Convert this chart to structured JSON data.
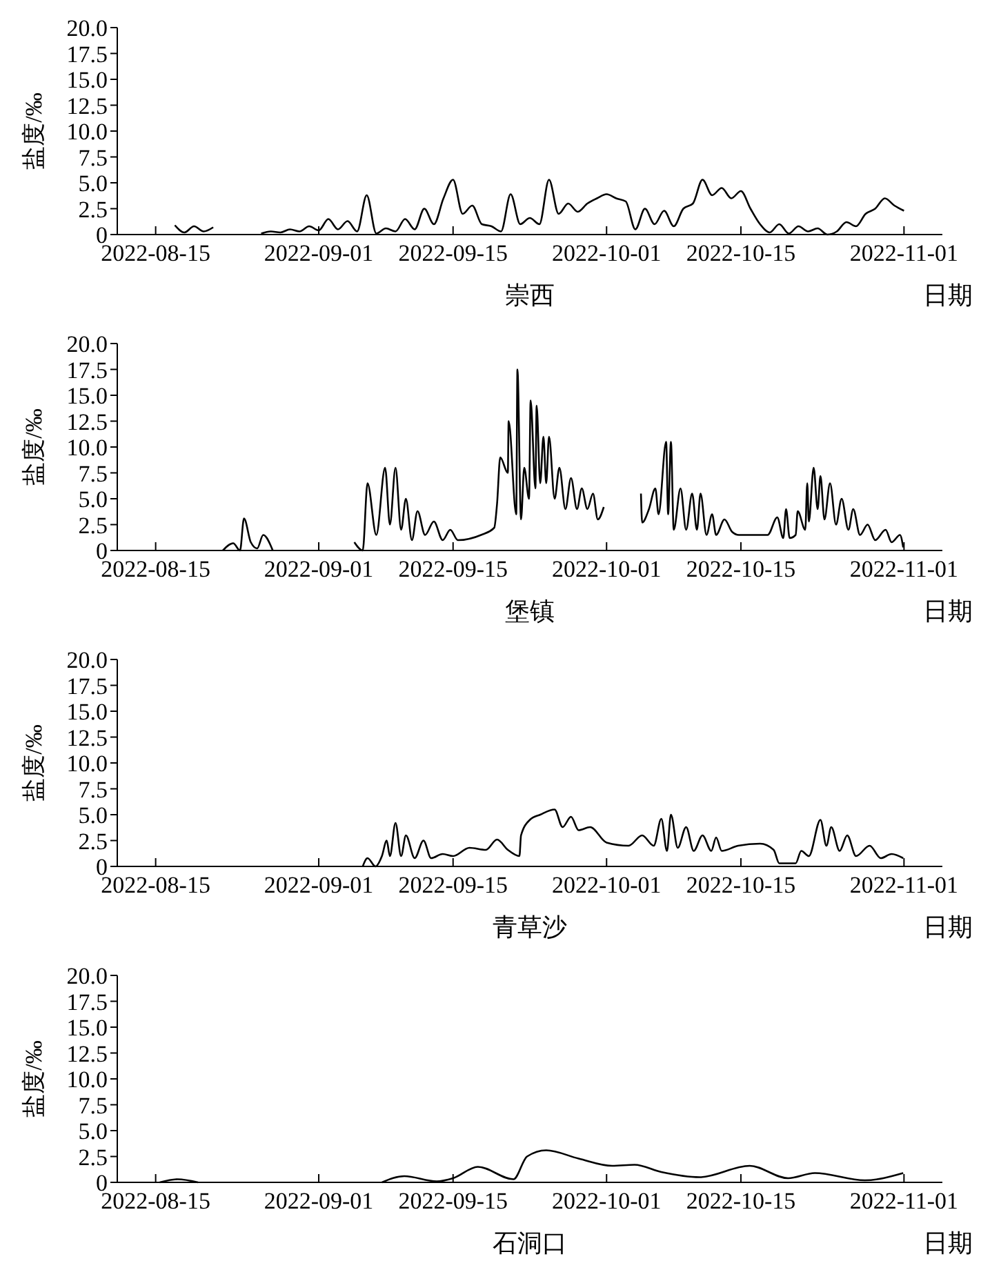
{
  "chart_data": [
    {
      "type": "line",
      "title": "崇西",
      "xlabel": "日期",
      "ylabel": "盐度/‰",
      "xlim": [
        "2022-08-11",
        "2022-11-05"
      ],
      "xticks": [
        "2022-08-15",
        "2022-09-01",
        "2022-09-15",
        "2022-10-01",
        "2022-10-15",
        "2022-11-01"
      ],
      "ylim": [
        0,
        20
      ],
      "yticks": [
        {
          "value": 0,
          "label": "0"
        },
        {
          "value": 2.5,
          "label": "2.5"
        },
        {
          "value": 5,
          "label": "5.0"
        },
        {
          "value": 7.5,
          "label": "7.5"
        },
        {
          "value": 10,
          "label": "10.0"
        },
        {
          "value": 12.5,
          "label": "12.5"
        },
        {
          "value": 15,
          "label": "15.0"
        },
        {
          "value": 17.5,
          "label": "17.5"
        },
        {
          "value": 20,
          "label": "20.0"
        }
      ],
      "x": [
        "2022-08-17",
        "2022-08-18",
        "2022-08-19",
        "2022-08-20",
        "2022-08-21",
        "2022-08-22",
        "2022-08-26",
        "2022-08-27",
        "2022-08-28",
        "2022-08-29",
        "2022-08-30",
        "2022-08-31",
        "2022-09-01",
        "2022-09-02",
        "2022-09-03",
        "2022-09-04",
        "2022-09-05",
        "2022-09-06",
        "2022-09-07",
        "2022-09-08",
        "2022-09-09",
        "2022-09-10",
        "2022-09-11",
        "2022-09-12",
        "2022-09-13",
        "2022-09-14",
        "2022-09-15",
        "2022-09-16",
        "2022-09-17",
        "2022-09-18",
        "2022-09-19",
        "2022-09-20",
        "2022-09-21",
        "2022-09-22",
        "2022-09-23",
        "2022-09-24",
        "2022-09-25",
        "2022-09-26",
        "2022-09-27",
        "2022-09-28",
        "2022-09-29",
        "2022-09-30",
        "2022-10-01",
        "2022-10-02",
        "2022-10-03",
        "2022-10-04",
        "2022-10-05",
        "2022-10-06",
        "2022-10-07",
        "2022-10-08",
        "2022-10-09",
        "2022-10-10",
        "2022-10-11",
        "2022-10-12",
        "2022-10-13",
        "2022-10-14",
        "2022-10-15",
        "2022-10-16",
        "2022-10-17",
        "2022-10-18",
        "2022-10-19",
        "2022-10-20",
        "2022-10-21",
        "2022-10-22",
        "2022-10-23",
        "2022-10-24",
        "2022-10-25",
        "2022-10-26",
        "2022-10-27",
        "2022-10-28",
        "2022-10-29",
        "2022-10-30",
        "2022-10-31",
        "2022-11-01"
      ],
      "series": [
        {
          "color": "#000000",
          "values": [
            0.9,
            0.2,
            0.8,
            0.3,
            0.7,
            null,
            0.1,
            0.3,
            0.2,
            0.5,
            0.3,
            0.8,
            0.4,
            1.5,
            0.5,
            1.3,
            0.3,
            3.8,
            0.1,
            0.6,
            0.3,
            1.5,
            0.5,
            2.5,
            1.0,
            3.5,
            5.3,
            2.0,
            2.8,
            1.0,
            0.8,
            0.3,
            3.9,
            1.0,
            1.6,
            1.0,
            5.3,
            2.0,
            3.0,
            2.2,
            3.0,
            3.5,
            3.9,
            3.5,
            3.2,
            0.5,
            2.5,
            1.0,
            2.3,
            0.8,
            2.5,
            3.0,
            5.3,
            3.8,
            4.5,
            3.5,
            4.2,
            2.5,
            1.0,
            0.2,
            1.0,
            0.1,
            0.8,
            0.3,
            0.6,
            0.0,
            0.3,
            1.2,
            0.8,
            2.0,
            2.5,
            3.5,
            2.8,
            2.3
          ]
        }
      ]
    },
    {
      "type": "line",
      "title": "堡镇",
      "xlabel": "日期",
      "ylabel": "盐度/‰",
      "xlim": [
        "2022-08-11",
        "2022-11-05"
      ],
      "xticks": [
        "2022-08-15",
        "2022-09-01",
        "2022-09-15",
        "2022-10-01",
        "2022-10-15",
        "2022-11-01"
      ],
      "ylim": [
        0,
        20
      ],
      "yticks": [
        {
          "value": 0,
          "label": "0"
        },
        {
          "value": 2.5,
          "label": "2.5"
        },
        {
          "value": 5,
          "label": "5.0"
        },
        {
          "value": 7.5,
          "label": "7.5"
        },
        {
          "value": 10,
          "label": "10.0"
        },
        {
          "value": 12.5,
          "label": "12.5"
        },
        {
          "value": 15,
          "label": "15.0"
        },
        {
          "value": 17.5,
          "label": "17.5"
        },
        {
          "value": 20,
          "label": "20.0"
        }
      ],
      "x": [
        "2022-08-22",
        "2022-08-23T02:00",
        "2022-08-23T19:00",
        "2022-08-24T05:00",
        "2022-08-24T22:00",
        "2022-08-25T14:00",
        "2022-08-26T05:00",
        "2022-08-27T05:00",
        "2022-08-30",
        "2022-09-04T17:00",
        "2022-09-05T14:00",
        "2022-09-06T02:00",
        "2022-09-07",
        "2022-09-07T22:00",
        "2022-09-08T10:00",
        "2022-09-09",
        "2022-09-09T14:00",
        "2022-09-10T02:00",
        "2022-09-10T17:00",
        "2022-09-11T07:00",
        "2022-09-12T02:00",
        "2022-09-13",
        "2022-09-13T22:00",
        "2022-09-14T17:00",
        "2022-09-15T12:00",
        "2022-09-17T22:00",
        "2022-09-19T07:00",
        "2022-09-19T14:00",
        "2022-09-19T22:00",
        "2022-09-20T17:00",
        "2022-09-20T19:00",
        "2022-09-21T14:00",
        "2022-09-21T17:00",
        "2022-09-22T02:00",
        "2022-09-22T10:00",
        "2022-09-22T22:00",
        "2022-09-23T02:00",
        "2022-09-23T14:00",
        "2022-09-23T17:00",
        "2022-09-24T02:00",
        "2022-09-24T10:00",
        "2022-09-24T17:00",
        "2022-09-25",
        "2022-09-25T14:00",
        "2022-09-26T02:00",
        "2022-09-26T17:00",
        "2022-09-27T07:00",
        "2022-09-27T22:00",
        "2022-09-28T10:00",
        "2022-09-29",
        "2022-09-29T14:00",
        "2022-09-30T02:00",
        "2022-09-30T17:00",
        "2022-10-02T12:00",
        "2022-10-04T14:00",
        "2022-10-04T17:00",
        "2022-10-05T10:00",
        "2022-10-06T02:00",
        "2022-10-06T10:00",
        "2022-10-07T05:00",
        "2022-10-07T10:00",
        "2022-10-07T17:00",
        "2022-10-08",
        "2022-10-08T17:00",
        "2022-10-09T07:00",
        "2022-10-09T22:00",
        "2022-10-10T10:00",
        "2022-10-10T19:00",
        "2022-10-11T10:00",
        "2022-10-12",
        "2022-10-12T10:00",
        "2022-10-13T07:00",
        "2022-10-14T02:00",
        "2022-10-14T19:00",
        "2022-10-17T19:00",
        "2022-10-18T19:00",
        "2022-10-19T10:00",
        "2022-10-19T17:00",
        "2022-10-20T02:00",
        "2022-10-20T17:00",
        "2022-10-20T22:00",
        "2022-10-21T17:00",
        "2022-10-21T22:00",
        "2022-10-22T02:00",
        "2022-10-22T14:00",
        "2022-10-23",
        "2022-10-23T07:00",
        "2022-10-23T17:00",
        "2022-10-24T07:00",
        "2022-10-24T22:00",
        "2022-10-25T12:00",
        "2022-10-26T05:00",
        "2022-10-26T17:00",
        "2022-10-27T10:00",
        "2022-10-28T05:00",
        "2022-10-29",
        "2022-10-30T02:00",
        "2022-10-30T17:00",
        "2022-10-31T14:00",
        "2022-10-31T22:00"
      ],
      "series": [
        {
          "color": "#000000",
          "values": [
            0,
            0.7,
            0,
            3.1,
            0.8,
            0.2,
            1.5,
            0,
            null,
            0.8,
            0,
            6.5,
            1.5,
            8.0,
            2.5,
            8.0,
            2.0,
            5.0,
            1.0,
            3.8,
            1.5,
            2.8,
            1.0,
            2.0,
            1.0,
            1.5,
            2.2,
            4.5,
            9.0,
            7.5,
            12.5,
            3.5,
            17.5,
            3.0,
            8.0,
            5.0,
            14.5,
            6.0,
            14.0,
            6.5,
            11.0,
            6.5,
            11.0,
            5.0,
            8.0,
            4.0,
            7.0,
            4.0,
            6.0,
            4.0,
            5.5,
            3.0,
            4.2,
            null,
            5.5,
            2.7,
            4.0,
            6.0,
            3.5,
            10.5,
            3.5,
            10.5,
            2.0,
            6.0,
            2.0,
            5.5,
            2.0,
            5.5,
            1.5,
            3.5,
            1.5,
            3.0,
            1.8,
            1.5,
            1.5,
            3.2,
            1.2,
            4.0,
            1.2,
            1.5,
            3.8,
            2.0,
            6.5,
            2.8,
            8.0,
            4.0,
            7.2,
            3.0,
            6.5,
            2.5,
            5.0,
            2.0,
            4.0,
            1.5,
            2.5,
            1.0,
            2.0,
            0.8,
            1.5,
            0.3
          ]
        }
      ]
    },
    {
      "type": "line",
      "title": "青草沙",
      "xlabel": "日期",
      "ylabel": "盐度/‰",
      "xlim": [
        "2022-08-11",
        "2022-11-05"
      ],
      "xticks": [
        "2022-08-15",
        "2022-09-01",
        "2022-09-15",
        "2022-10-01",
        "2022-10-15",
        "2022-11-01"
      ],
      "ylim": [
        0,
        20
      ],
      "yticks": [
        {
          "value": 0,
          "label": "0"
        },
        {
          "value": 2.5,
          "label": "2.5"
        },
        {
          "value": 5,
          "label": "5.0"
        },
        {
          "value": 7.5,
          "label": "7.5"
        },
        {
          "value": 10,
          "label": "10.0"
        },
        {
          "value": 12.5,
          "label": "12.5"
        },
        {
          "value": 15,
          "label": "15.0"
        },
        {
          "value": 17.5,
          "label": "17.5"
        },
        {
          "value": 20,
          "label": "20.0"
        }
      ],
      "x": [
        "2022-09-05T14:00",
        "2022-09-06T02:00",
        "2022-09-06T22:00",
        "2022-09-07T14:00",
        "2022-09-08T02:00",
        "2022-09-08T10:00",
        "2022-09-09",
        "2022-09-09T14:00",
        "2022-09-10T02:00",
        "2022-09-11",
        "2022-09-11T22:00",
        "2022-09-12T17:00",
        "2022-09-13T22:00",
        "2022-09-15",
        "2022-09-16T17:00",
        "2022-09-18T10:00",
        "2022-09-19T14:00",
        "2022-09-20T17:00",
        "2022-09-21T22:00",
        "2022-09-22T02:00",
        "2022-09-23",
        "2022-09-24T02:00",
        "2022-09-25T14:00",
        "2022-09-26T10:00",
        "2022-09-27T07:00",
        "2022-09-28T02:00",
        "2022-09-29T07:00",
        "2022-10-01",
        "2022-10-03T07:00",
        "2022-10-04T17:00",
        "2022-10-05T22:00",
        "2022-10-06T17:00",
        "2022-10-07T07:00",
        "2022-10-07T17:00",
        "2022-10-08T10:00",
        "2022-10-09T07:00",
        "2022-10-10T02:00",
        "2022-10-11",
        "2022-10-11T22:00",
        "2022-10-12T10:00",
        "2022-10-13",
        "2022-10-14T17:00",
        "2022-10-17",
        "2022-10-18T10:00",
        "2022-10-19",
        "2022-10-20T17:00",
        "2022-10-21T07:00",
        "2022-10-22T02:00",
        "2022-10-23T07:00",
        "2022-10-23T22:00",
        "2022-10-24T10:00",
        "2022-10-25T07:00",
        "2022-10-26T02:00",
        "2022-10-27",
        "2022-10-28T10:00",
        "2022-10-29T14:00",
        "2022-10-30T17:00",
        "2022-10-31T22:00"
      ],
      "series": [
        {
          "color": "#000000",
          "values": [
            0,
            0.8,
            0,
            1.0,
            2.5,
            1.0,
            4.2,
            1.0,
            3.0,
            0.8,
            2.5,
            0.8,
            1.2,
            1.0,
            1.8,
            1.6,
            2.6,
            1.6,
            1.0,
            3.0,
            4.5,
            5.0,
            5.5,
            3.8,
            4.8,
            3.5,
            3.8,
            2.3,
            2.0,
            3.0,
            2.0,
            4.6,
            1.5,
            5.0,
            1.8,
            3.8,
            1.5,
            3.0,
            1.5,
            2.8,
            1.5,
            2.0,
            2.2,
            1.6,
            0.3,
            0.3,
            1.5,
            1.0,
            4.5,
            2.0,
            3.8,
            1.5,
            3.0,
            1.0,
            2.0,
            0.8,
            1.2,
            0.8
          ]
        }
      ]
    },
    {
      "type": "line",
      "title": "石洞口",
      "xlabel": "日期",
      "ylabel": "盐度/‰",
      "xlim": [
        "2022-08-11",
        "2022-11-05"
      ],
      "xticks": [
        "2022-08-15",
        "2022-09-01",
        "2022-09-15",
        "2022-10-01",
        "2022-10-15",
        "2022-11-01"
      ],
      "ylim": [
        0,
        20
      ],
      "yticks": [
        {
          "value": 0,
          "label": "0"
        },
        {
          "value": 2.5,
          "label": "2.5"
        },
        {
          "value": 5,
          "label": "5.0"
        },
        {
          "value": 7.5,
          "label": "7.5"
        },
        {
          "value": 10,
          "label": "10.0"
        },
        {
          "value": 12.5,
          "label": "12.5"
        },
        {
          "value": 15,
          "label": "15.0"
        },
        {
          "value": 17.5,
          "label": "17.5"
        },
        {
          "value": 20,
          "label": "20.0"
        }
      ],
      "x": [
        "2022-08-15T10:00",
        "2022-08-17T07:00",
        "2022-08-19T10:00",
        "2022-08-25",
        "2022-09-07T14:00",
        "2022-09-09T22:00",
        "2022-09-13T07:00",
        "2022-09-15",
        "2022-09-17T14:00",
        "2022-09-21T07:00",
        "2022-09-22T17:00",
        "2022-09-24T17:00",
        "2022-09-28T02:00",
        "2022-10-01T14:00",
        "2022-10-03T22:00",
        "2022-10-06T17:00",
        "2022-10-10T17:00",
        "2022-10-15T22:00",
        "2022-10-19T22:00",
        "2022-10-22T17:00",
        "2022-10-27T22:00",
        "2022-10-31T22:00"
      ],
      "series": [
        {
          "color": "#000000",
          "values": [
            0,
            0.3,
            0,
            null,
            0,
            0.6,
            0.1,
            0.4,
            1.5,
            0.3,
            2.5,
            3.1,
            2.3,
            1.6,
            1.7,
            1.0,
            0.5,
            1.6,
            0.4,
            0.9,
            0.2,
            0.9
          ]
        }
      ]
    }
  ]
}
